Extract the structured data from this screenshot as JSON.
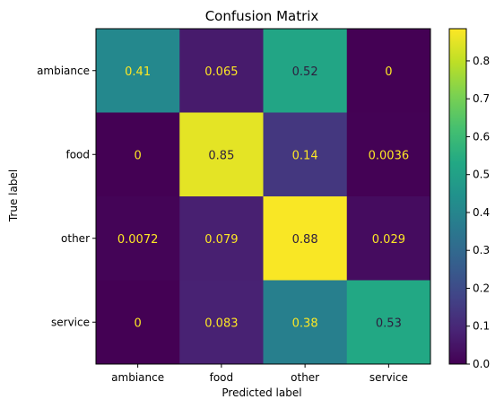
{
  "chart_data": {
    "type": "heatmap",
    "title": "Confusion Matrix",
    "xlabel": "Predicted label",
    "ylabel": "True label",
    "x_categories": [
      "ambiance",
      "food",
      "other",
      "service"
    ],
    "y_categories": [
      "ambiance",
      "food",
      "other",
      "service"
    ],
    "values": [
      [
        0.41,
        0.065,
        0.52,
        0
      ],
      [
        0,
        0.85,
        0.14,
        0.0036
      ],
      [
        0.0072,
        0.079,
        0.88,
        0.029
      ],
      [
        0,
        0.083,
        0.38,
        0.53
      ]
    ],
    "colormap": "viridis",
    "colorbar": {
      "range": [
        0,
        0.885
      ],
      "ticks": [
        "0.0",
        "0.1",
        "0.2",
        "0.3",
        "0.4",
        "0.5",
        "0.6",
        "0.7",
        "0.8"
      ]
    },
    "grid": false
  }
}
